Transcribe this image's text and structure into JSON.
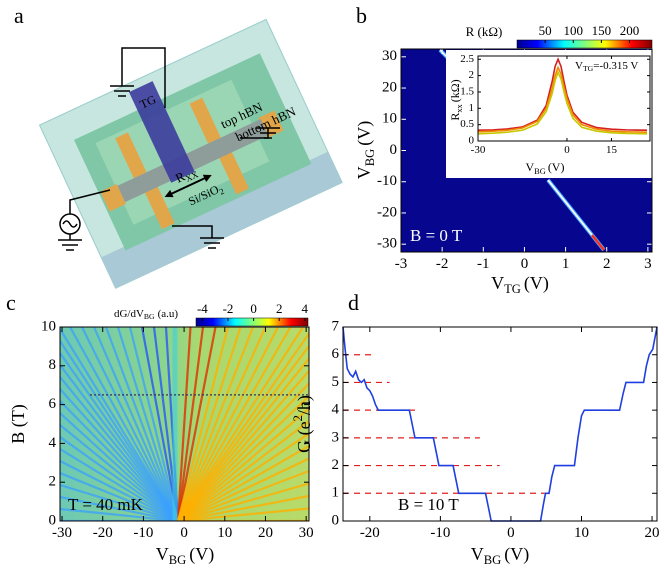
{
  "diagram": {
    "panel_label": "a",
    "gate": "TG",
    "top_layer": "top hBN",
    "bottom_layer": "bottom hBN",
    "substrate": [
      "Si/SiO",
      "2"
    ],
    "resistance": [
      "R",
      "XX"
    ]
  },
  "chart_data": [
    {
      "type": "heatmap",
      "panel_label": "b",
      "xlim": [
        -3,
        3.1
      ],
      "xticks": [
        -3,
        -2,
        -1,
        0,
        1,
        2,
        3
      ],
      "ylim": [
        -32.5,
        32.5
      ],
      "yticks": [
        -30,
        -20,
        -10,
        0,
        10,
        20,
        30
      ],
      "xlabel": [
        "V",
        "TG",
        "(V)"
      ],
      "ylabel": [
        "V",
        "BG",
        "(V)"
      ],
      "annotation": "B = 0 T",
      "colorbar": {
        "title": "R (kΩ)",
        "lim": [
          0,
          240
        ],
        "ticks": [
          50,
          100,
          150,
          200
        ]
      }
    },
    {
      "type": "line",
      "x": [
        -30,
        -25,
        -20,
        -15,
        -10,
        -7,
        -5,
        -4,
        -3,
        -2,
        -1,
        0,
        2,
        5,
        10,
        15,
        20,
        27
      ],
      "series": [
        {
          "color": "#d62020",
          "values": [
            0.33,
            0.34,
            0.37,
            0.43,
            0.64,
            1.09,
            1.82,
            2.28,
            2.5,
            2.28,
            1.82,
            1.4,
            0.88,
            0.57,
            0.41,
            0.36,
            0.34,
            0.33
          ]
        },
        {
          "color": "#f08a00",
          "values": [
            0.28,
            0.3,
            0.33,
            0.4,
            0.6,
            1.0,
            1.6,
            2.0,
            2.25,
            2.05,
            1.65,
            1.3,
            0.8,
            0.5,
            0.36,
            0.3,
            0.28,
            0.27
          ]
        },
        {
          "color": "#c8c800",
          "values": [
            0.22,
            0.24,
            0.27,
            0.33,
            0.52,
            0.9,
            1.45,
            1.85,
            2.1,
            1.9,
            1.5,
            1.15,
            0.7,
            0.42,
            0.3,
            0.25,
            0.23,
            0.22
          ]
        }
      ],
      "xlim": [
        -30,
        28
      ],
      "xticks": [
        -30,
        0,
        15
      ],
      "ylim": [
        0,
        2.6
      ],
      "yticks": [
        0,
        0.5,
        1,
        1.5,
        2,
        2.5
      ],
      "xlabel": [
        "V",
        "BG",
        "(V)"
      ],
      "ylabel": [
        "R",
        "xx",
        "(kΩ)"
      ],
      "annotation": [
        "V",
        "TG",
        "=-0.315 V"
      ]
    },
    {
      "type": "heatmap",
      "panel_label": "c",
      "xlim": [
        -30.5,
        30.7
      ],
      "xticks": [
        -30,
        -20,
        -10,
        0,
        10,
        20,
        30
      ],
      "ylim": [
        0,
        10
      ],
      "yticks": [
        0,
        2,
        4,
        6,
        8,
        10
      ],
      "xlabel": [
        "V",
        "BG",
        "(V)"
      ],
      "ylabel": "B (T)",
      "annotation": "T = 40 mK",
      "colorbar": {
        "title": [
          "dG/dV",
          "BG",
          "(a.u)"
        ],
        "lim": [
          -4.5,
          4.25
        ],
        "ticks": [
          -4,
          -2,
          0,
          2,
          4
        ]
      }
    },
    {
      "type": "line",
      "panel_label": "d",
      "x": [
        -23.8,
        -23.5,
        -23.2,
        -22.8,
        -22.4,
        -22,
        -21.6,
        -21.2,
        -20.8,
        -20.4,
        -20,
        -19.6,
        -19.2,
        -18.8,
        -14.4,
        -14,
        -13.6,
        -11,
        -10.6,
        -10.2,
        -8.2,
        -7.8,
        -7.4,
        -3.6,
        -3.2,
        -2.8,
        4.2,
        4.6,
        4.9,
        5.4,
        5.8,
        6.2,
        9,
        9.5,
        10,
        10.4,
        15.4,
        15.9,
        16.3,
        18.8,
        19.2,
        19.6,
        20.1,
        20.7
      ],
      "values": [
        7,
        6.2,
        5.5,
        5.3,
        5.2,
        5.4,
        5.1,
        5.0,
        5.1,
        4.8,
        4.7,
        4.5,
        4.2,
        4.0,
        4.0,
        3.5,
        3.0,
        3.0,
        2.5,
        2.0,
        2.0,
        1.5,
        1.0,
        1.0,
        0.5,
        0,
        0,
        0.6,
        1,
        1,
        1.6,
        2,
        2,
        3,
        3.8,
        4,
        4,
        4.6,
        5,
        5,
        5.6,
        6,
        6.2,
        7
      ],
      "color": "#1f3fe0",
      "guides": [
        {
          "y": 1,
          "x_end": 4.8
        },
        {
          "y": 2,
          "x_end": -1.6
        },
        {
          "y": 3,
          "x_end": -4.4
        },
        {
          "y": 4,
          "x_end": -13.6
        },
        {
          "y": 5,
          "x_end": -17.2
        },
        {
          "y": 6,
          "x_end": -19.3
        }
      ],
      "guide_color": "#e02020",
      "xlim": [
        -23.8,
        20.7
      ],
      "xticks": [
        -20,
        -10,
        0,
        10,
        20
      ],
      "ylim": [
        0,
        7
      ],
      "yticks": [
        0,
        1,
        2,
        3,
        4,
        5,
        6,
        7
      ],
      "xlabel": [
        "V",
        "BG",
        "(V)"
      ],
      "ylabel": [
        "G (e",
        "2",
        "/h)"
      ],
      "annotation": "B = 10 T"
    }
  ]
}
